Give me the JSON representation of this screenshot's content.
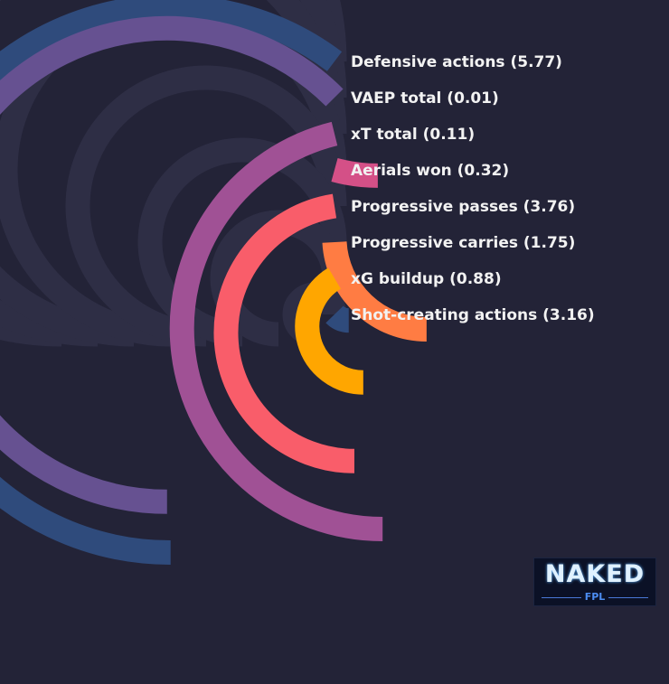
{
  "chart_data": {
    "type": "radial-bar",
    "value_max": 7.2,
    "series": [
      {
        "label": "Defensive actions (5.77)",
        "value": 5.77,
        "color": "#2f4b7c"
      },
      {
        "label": "VAEP total (0.01)",
        "value": 0.01,
        "color": "#665191"
      },
      {
        "label": "xT total (0.11)",
        "value": 0.11,
        "color": "#a05195"
      },
      {
        "label": "Aerials won (0.32)",
        "value": 0.32,
        "color": "#d45087"
      },
      {
        "label": "Progressive passes (3.76)",
        "value": 3.76,
        "color": "#f95d6a"
      },
      {
        "label": "Progressive carries (1.75)",
        "value": 1.75,
        "color": "#ff7c43"
      },
      {
        "label": "xG buildup (0.88)",
        "value": 0.88,
        "color": "#ffa600"
      },
      {
        "label": "Shot-creating actions (3.16)",
        "value": 3.16,
        "color": "#2f4b7c"
      }
    ],
    "fill_fraction": [
      0.8033,
      0.8333,
      0.6153,
      0.0565,
      0.6337,
      0.3218,
      0.5523,
      0.1693
    ],
    "track_color": "#2e2e45"
  },
  "logo": {
    "text": "NAKED",
    "subtext": "FPL"
  }
}
